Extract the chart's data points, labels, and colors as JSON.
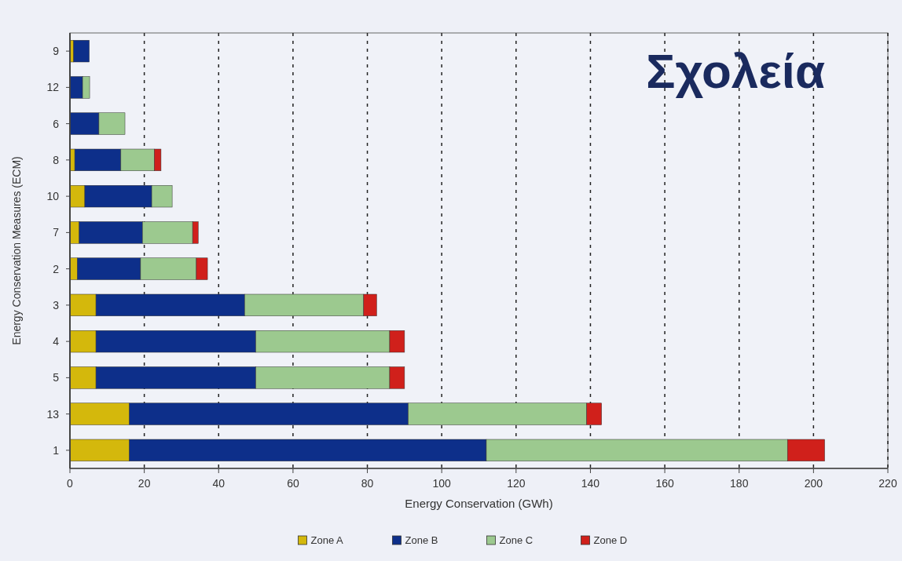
{
  "chart_data": {
    "type": "bar",
    "orientation": "horizontal",
    "stacked": true,
    "title": "Σχολεία",
    "xlabel": "Energy Conservation (GWh)",
    "ylabel": "Energy Conservation Measures (ECM)",
    "categories": [
      "9",
      "12",
      "6",
      "8",
      "10",
      "7",
      "2",
      "3",
      "4",
      "5",
      "13",
      "1"
    ],
    "series": [
      {
        "name": "Zone A",
        "color": "#d4b80c",
        "values": [
          1,
          0,
          0,
          1.3,
          4,
          2.5,
          2,
          7,
          7,
          7,
          16,
          16
        ]
      },
      {
        "name": "Zone B",
        "color": "#0d2f8a",
        "values": [
          4.2,
          3.4,
          7.8,
          12.4,
          18,
          17,
          17,
          40,
          43,
          43,
          75,
          96
        ]
      },
      {
        "name": "Zone C",
        "color": "#9cc98f",
        "values": [
          0,
          1.9,
          7,
          9,
          5.5,
          13.5,
          15,
          32,
          36,
          36,
          48,
          81
        ]
      },
      {
        "name": "Zone D",
        "color": "#d0201b",
        "values": [
          0,
          0,
          0,
          1.8,
          0,
          1.5,
          3,
          3.5,
          4,
          4,
          4,
          10
        ]
      }
    ],
    "xlim": [
      0,
      220
    ],
    "xticks": [
      0,
      20,
      40,
      60,
      80,
      100,
      120,
      140,
      160,
      180,
      200,
      220
    ],
    "grid": "x",
    "legend": "bottom"
  }
}
